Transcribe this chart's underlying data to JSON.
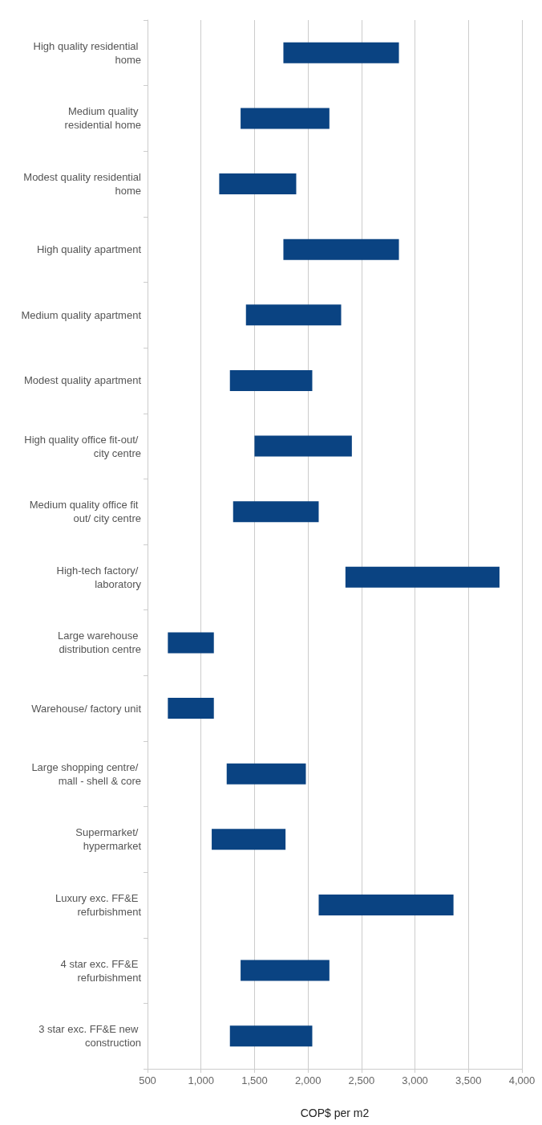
{
  "chart_data": {
    "type": "bar",
    "orientation": "horizontal",
    "xlabel": "COP$ per m2",
    "categories": [
      "High quality residential home",
      "Medium quality residential home",
      "Modest quality residential home",
      "High quality apartment",
      "Medium quality apartment",
      "Modest quality apartment",
      "High quality office fit-out/ city centre",
      "Medium quality office fit out/ city centre",
      "High-tech factory/ laboratory",
      "Large warehouse distribution centre",
      "Warehouse/ factory unit",
      "Large shopping centre/ mall - shell & core",
      "Supermarket/ hypermarket",
      "Luxury exc. FF&E refurbishment",
      "4 star exc. FF&E refurbishment",
      "3 star exc. FF&E new construction"
    ],
    "base": [
      1770,
      1370,
      1170,
      1770,
      1420,
      1270,
      1500,
      1300,
      2350,
      690,
      690,
      1240,
      1100,
      2100,
      1370,
      1270
    ],
    "values": [
      1080,
      830,
      720,
      1080,
      890,
      770,
      910,
      800,
      1440,
      430,
      430,
      740,
      690,
      1260,
      830,
      770
    ],
    "color": "#0a4382",
    "xlim": [
      500,
      4000
    ],
    "xticks": [
      500,
      {
        "value": 1000,
        "label": "1,000"
      },
      {
        "value": 1500,
        "label": "1,500"
      },
      {
        "value": 2000,
        "label": "2,000"
      },
      {
        "value": 2500,
        "label": "2,500"
      },
      {
        "value": 3000,
        "label": "3,000"
      },
      {
        "value": 3500,
        "label": "3,500"
      },
      {
        "value": 4000,
        "label": "4,000"
      }
    ],
    "grid": "x"
  }
}
